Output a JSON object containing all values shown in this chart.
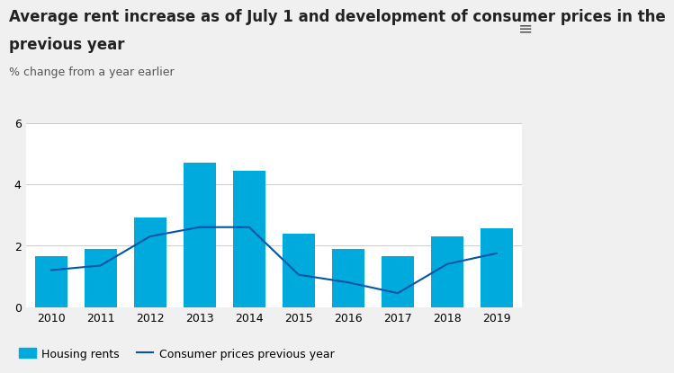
{
  "title_line1": "Average rent increase as of July 1 and development of consumer prices in the",
  "title_line2": "previous year",
  "subtitle": "% change from a year earlier",
  "years": [
    2010,
    2011,
    2012,
    2013,
    2014,
    2015,
    2016,
    2017,
    2018,
    2019
  ],
  "housing_rents": [
    1.65,
    1.9,
    2.9,
    4.7,
    4.45,
    2.4,
    1.9,
    1.65,
    2.3,
    2.55
  ],
  "consumer_prices": [
    1.2,
    1.35,
    2.3,
    2.6,
    2.6,
    1.05,
    0.8,
    0.45,
    1.4,
    1.75
  ],
  "bar_color": "#00AADD",
  "line_color": "#0055AA",
  "ylim": [
    0,
    6
  ],
  "yticks": [
    0,
    2,
    4,
    6
  ],
  "background_color": "#f0f0f0",
  "plot_bg_color": "#ffffff",
  "legend_housing": "Housing rents",
  "legend_consumer": "Consumer prices previous year",
  "title_fontsize": 12,
  "subtitle_fontsize": 9,
  "axis_fontsize": 9
}
